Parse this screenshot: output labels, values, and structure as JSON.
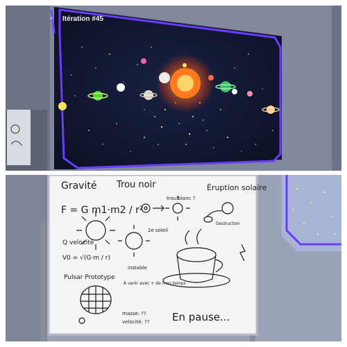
{
  "projection": {
    "hud_label": "Itération #45"
  },
  "whiteboard": {
    "headings": {
      "gravity": "Gravité",
      "black_hole": "Trou noir",
      "solar_eruption": "Éruption solaire",
      "white_hole": "trou blanc ?",
      "pulsar": "Pulsar Prototype"
    },
    "notes": {
      "formula_gravity": "F = G m1·m2 / r²",
      "velocity_label": "Q velocité",
      "velocity_formula": "V0 = √(G·m / r)",
      "second_sun": "2e soleil",
      "instable": "instable",
      "destruction": "Destruction",
      "a_venir": "À venir avec + de mon temps",
      "masse": "masse: ??",
      "velocite_q": "velocité: ??",
      "paused": "En pause..."
    }
  },
  "colors": {
    "hud_border": "#6a3cff",
    "space_bg": "#0c1229",
    "sun": "#ff7a1c",
    "ink": "#1a1a1a",
    "room_wall": "#6b7184"
  }
}
